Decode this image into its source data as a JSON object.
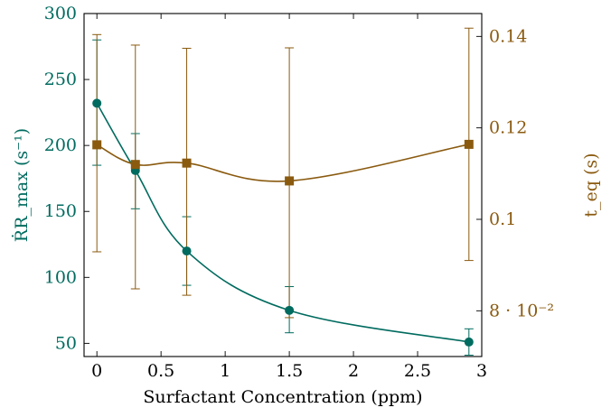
{
  "chart_data": {
    "type": "line",
    "xlabel": "Surfactant Concentration (ppm)",
    "ylabel_left": "ṘR_max (s⁻¹)",
    "ylabel_right": "t_eq (s)",
    "xlim": [
      -0.1,
      3.0
    ],
    "ylim_left": [
      40,
      300
    ],
    "ylim_right": [
      0.07,
      0.145
    ],
    "x_ticks": [
      "0",
      "0.5",
      "1",
      "1.5",
      "2",
      "2.5",
      "3"
    ],
    "y_left_ticks": [
      "50",
      "100",
      "150",
      "200",
      "250",
      "300"
    ],
    "y_right_ticks": [
      "8 · 10⁻²",
      "0.1",
      "0.12",
      "0.14"
    ],
    "grid": false,
    "colors": {
      "left": "#006b5f",
      "right": "#8a5a0f"
    },
    "series": [
      {
        "axis": "left",
        "marker": "circle",
        "x": [
          0,
          0.3,
          0.7,
          1.5,
          2.9
        ],
        "y": [
          232,
          181,
          120,
          75,
          51
        ],
        "err_low": [
          185,
          152,
          94,
          58,
          41
        ],
        "err_high": [
          280,
          209,
          146,
          93,
          61
        ]
      },
      {
        "axis": "right",
        "marker": "square",
        "x": [
          0,
          0.3,
          0.7,
          1.5,
          2.9
        ],
        "y": [
          0.1163,
          0.112,
          0.1123,
          0.1084,
          0.1164
        ],
        "err_low": [
          0.0929,
          0.0848,
          0.0834,
          0.0785,
          0.091
        ],
        "err_high": [
          0.1404,
          0.1381,
          0.1374,
          0.1375,
          0.1418
        ]
      }
    ]
  }
}
